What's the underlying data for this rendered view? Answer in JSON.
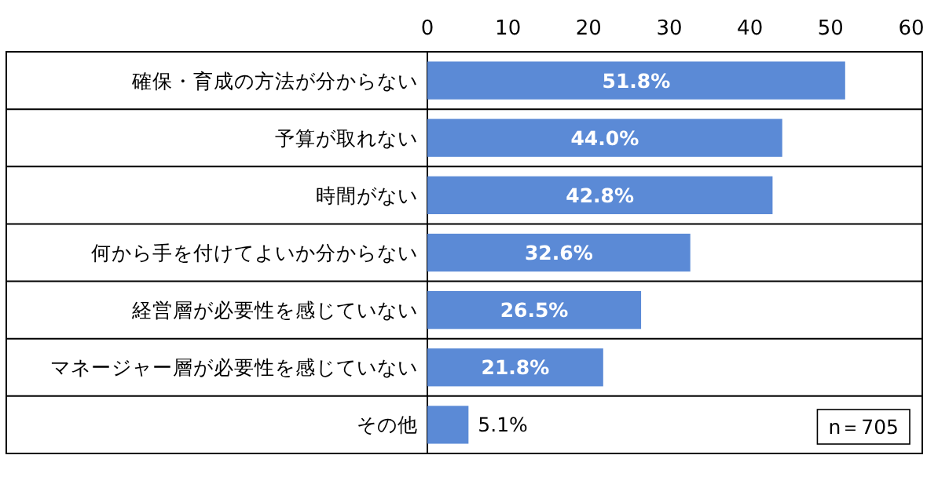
{
  "chart_data": {
    "type": "bar",
    "orientation": "horizontal",
    "categories": [
      "確保・育成の方法が分からない",
      "予算が取れない",
      "時間がない",
      "何から手を付けてよいか分からない",
      "経営層が必要性を感じていない",
      "マネージャー層が必要性を感じていない",
      "その他"
    ],
    "values": [
      51.8,
      44.0,
      42.8,
      32.6,
      26.5,
      21.8,
      5.1
    ],
    "value_labels": [
      "51.8%",
      "44.0%",
      "42.8%",
      "32.6%",
      "26.5%",
      "21.8%",
      "5.1%"
    ],
    "color": "#5b8ad6",
    "xlim": [
      0,
      60
    ],
    "xticks": [
      0,
      10,
      20,
      30,
      40,
      50,
      60
    ],
    "annotations": [
      "n＝705"
    ]
  }
}
